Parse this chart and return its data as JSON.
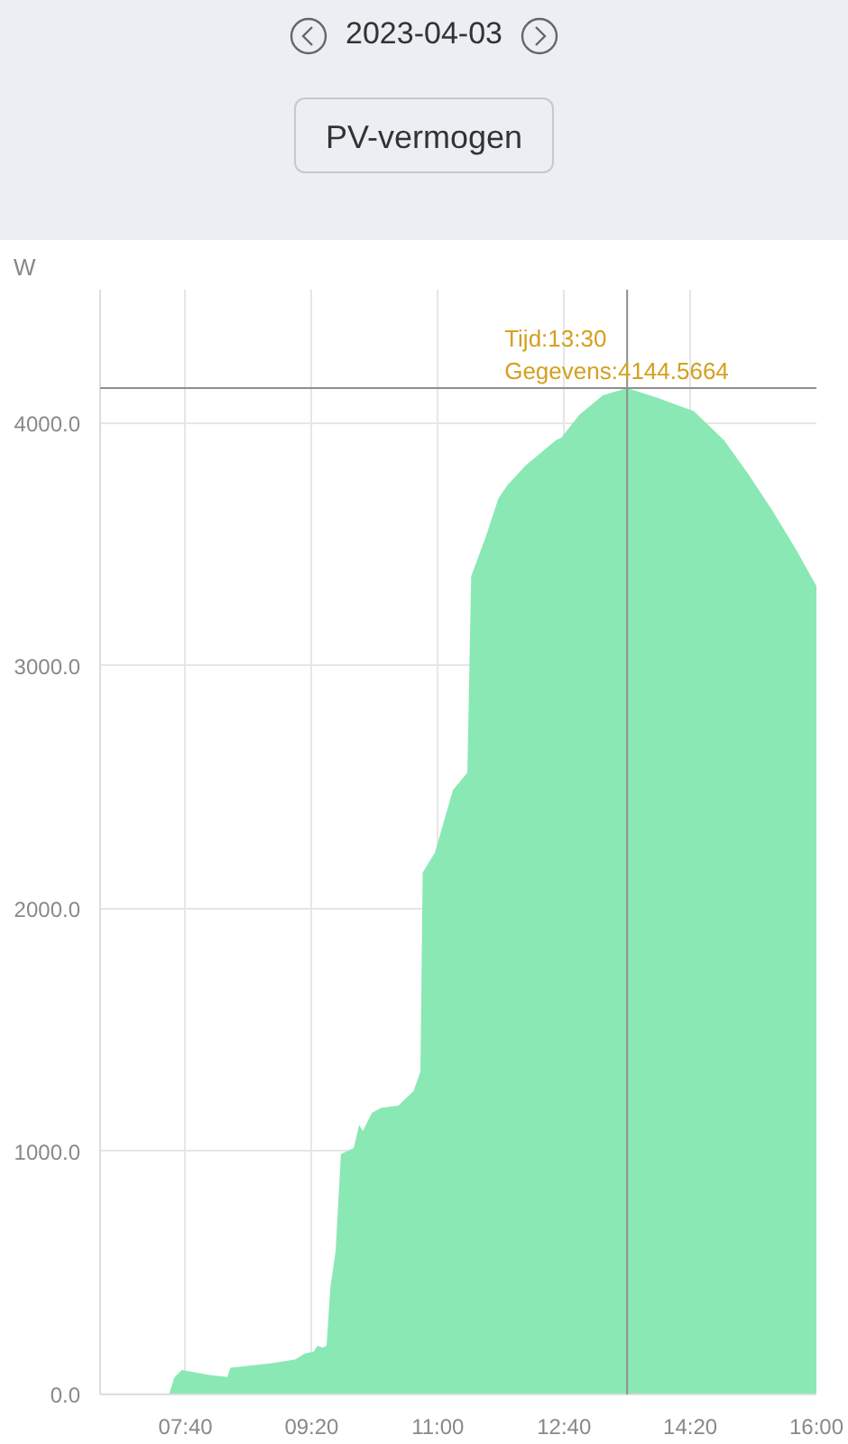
{
  "chart_data": {
    "type": "area",
    "title": "2023-04-03",
    "subtitle": "PV-vermogen",
    "ylabel": "W",
    "x": [
      6.54,
      7.45,
      7.52,
      7.62,
      7.98,
      8.22,
      8.26,
      8.81,
      9.12,
      9.24,
      9.36,
      9.41,
      9.48,
      9.53,
      9.58,
      9.65,
      9.72,
      9.89,
      9.96,
      10.01,
      10.13,
      10.25,
      10.48,
      10.68,
      10.77,
      10.8,
      10.96,
      11.2,
      11.39,
      11.44,
      11.63,
      11.8,
      11.92,
      12.16,
      12.56,
      12.63,
      12.87,
      13.18,
      13.5,
      13.9,
      14.38,
      14.78,
      15.09,
      15.43,
      15.74,
      16.0
    ],
    "series": [
      {
        "color": "#8ae8b4",
        "values": [
          0,
          0,
          70,
          100,
          80,
          72,
          110,
          128,
          144,
          168,
          176,
          200,
          192,
          200,
          440,
          590,
          990,
          1015,
          1110,
          1085,
          1160,
          1180,
          1190,
          1250,
          1330,
          2150,
          2230,
          2490,
          2560,
          3370,
          3530,
          3690,
          3745,
          3826,
          3930,
          3940,
          4035,
          4115,
          4144.5664,
          4105,
          4050,
          3930,
          3795,
          3635,
          3475,
          3330
        ]
      }
    ],
    "xlim": [
      6.54,
      16.0
    ],
    "ylim": [
      0,
      4550
    ],
    "xticks": [
      {
        "value": 7.6667,
        "label": "07:40"
      },
      {
        "value": 9.3333,
        "label": "09:20"
      },
      {
        "value": 11,
        "label": "11:00"
      },
      {
        "value": 12.6667,
        "label": "12:40"
      },
      {
        "value": 14.3333,
        "label": "14:20"
      },
      {
        "value": 16,
        "label": "16:00"
      }
    ],
    "yticks": [
      {
        "value": 0,
        "label": "0.0"
      },
      {
        "value": 1000,
        "label": "1000.0"
      },
      {
        "value": 2000,
        "label": "2000.0"
      },
      {
        "value": 3000,
        "label": "3000.0"
      },
      {
        "value": 4000,
        "label": "4000.0"
      }
    ],
    "grid": true,
    "ref_lines": [
      {
        "axis": "x",
        "value": 13.5,
        "color": "#8f8f8f"
      },
      {
        "axis": "y",
        "value": 4144.5664,
        "color": "#8f8f8f"
      }
    ],
    "annotations": [
      {
        "text": "Tijd:13:30\nGegevens:4144.5664",
        "x": 13.5,
        "y": 4144.5664
      }
    ]
  }
}
